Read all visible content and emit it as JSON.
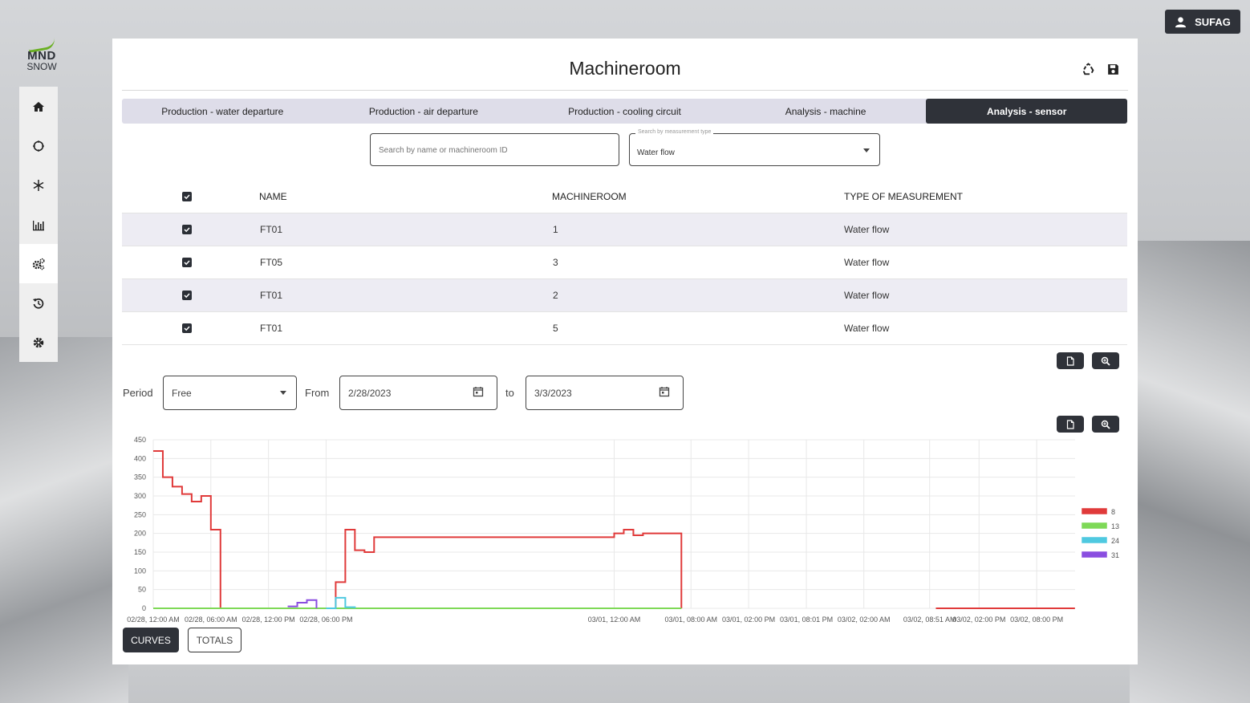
{
  "brand": {
    "logo_top": "MND",
    "logo_bottom": "SNOW"
  },
  "user": {
    "name": "SUFAG"
  },
  "sidebar": {
    "items": [
      {
        "name": "home",
        "active": false
      },
      {
        "name": "circle",
        "active": false
      },
      {
        "name": "snowflake",
        "active": false
      },
      {
        "name": "chart",
        "active": false
      },
      {
        "name": "gears",
        "active": true
      },
      {
        "name": "history",
        "active": false
      },
      {
        "name": "settings",
        "active": false
      }
    ]
  },
  "page": {
    "title": "Machineroom"
  },
  "tabs": [
    {
      "label": "Production - water departure"
    },
    {
      "label": "Production - air departure"
    },
    {
      "label": "Production - cooling circuit"
    },
    {
      "label": "Analysis - machine"
    },
    {
      "label": "Analysis - sensor"
    }
  ],
  "active_tab": 4,
  "search": {
    "placeholder": "Search by name or machineroom ID",
    "value": ""
  },
  "measurement_select": {
    "label": "Search by measurement type",
    "value": "Water flow"
  },
  "table": {
    "headers": {
      "name": "NAME",
      "room": "MACHINEROOM",
      "type": "TYPE OF MEASUREMENT"
    },
    "rows": [
      {
        "name": "FT01",
        "room": "1",
        "type": "Water flow",
        "checked": true
      },
      {
        "name": "FT05",
        "room": "3",
        "type": "Water flow",
        "checked": true
      },
      {
        "name": "FT01",
        "room": "2",
        "type": "Water flow",
        "checked": true
      },
      {
        "name": "FT01",
        "room": "5",
        "type": "Water flow",
        "checked": true
      }
    ]
  },
  "filters": {
    "period_label": "Period",
    "period_value": "Free",
    "from_label": "From",
    "from_value": "2/28/2023",
    "to_label": "to",
    "to_value": "3/3/2023"
  },
  "buttons": {
    "curves": "CURVES",
    "totals": "TOTALS"
  },
  "chart_data": {
    "type": "line",
    "title": "",
    "xlabel": "",
    "ylabel": "",
    "ylim": [
      0,
      450
    ],
    "yticks": [
      0,
      50,
      100,
      150,
      200,
      250,
      300,
      350,
      400,
      450
    ],
    "xlim": [
      "02/28 00:00",
      "03/03 00:00"
    ],
    "xtick_labels": [
      {
        "label": "02/28, 12:00 AM",
        "t": "02/28 00:00"
      },
      {
        "label": "02/28, 06:00 AM",
        "t": "02/28 06:00"
      },
      {
        "label": "02/28, 12:00 PM",
        "t": "02/28 12:00"
      },
      {
        "label": "02/28, 06:00 PM",
        "t": "02/28 18:00"
      },
      {
        "label": "03/01, 12:00 AM",
        "t": "03/01 00:00"
      },
      {
        "label": "03/01, 08:00 AM",
        "t": "03/01 08:00"
      },
      {
        "label": "03/01, 02:00 PM",
        "t": "03/01 14:00"
      },
      {
        "label": "03/01, 08:01 PM",
        "t": "03/01 20:01"
      },
      {
        "label": "03/02, 02:00 AM",
        "t": "03/02 02:00"
      },
      {
        "label": "03/02, 08:51 AM",
        "t": "03/02 08:51"
      },
      {
        "label": "03/02, 02:00 PM",
        "t": "03/02 14:00"
      },
      {
        "label": "03/02, 08:00 PM",
        "t": "03/02 20:00"
      }
    ],
    "grid": true,
    "legend_position": "right",
    "series": [
      {
        "name": "8",
        "color": "#e03a3a",
        "step": true,
        "points": [
          [
            "02/28 00:00",
            420
          ],
          [
            "02/28 01:00",
            350
          ],
          [
            "02/28 02:00",
            325
          ],
          [
            "02/28 03:00",
            305
          ],
          [
            "02/28 04:00",
            285
          ],
          [
            "02/28 05:00",
            300
          ],
          [
            "02/28 06:00",
            210
          ],
          [
            "02/28 07:00",
            0
          ],
          [
            "02/28 19:00",
            70
          ],
          [
            "02/28 20:00",
            210
          ],
          [
            "02/28 21:00",
            155
          ],
          [
            "02/28 22:00",
            150
          ],
          [
            "02/28 23:00",
            190
          ],
          [
            "03/01 00:00",
            200
          ],
          [
            "03/01 01:00",
            210
          ],
          [
            "03/01 02:00",
            195
          ],
          [
            "03/01 03:00",
            200
          ],
          [
            "03/01 04:00",
            200
          ],
          [
            "03/01 07:00",
            0
          ],
          [
            "03/01 14:45",
            null
          ],
          [
            "03/01 15:15",
            0
          ],
          [
            "03/02 09:00",
            null
          ],
          [
            "03/02 09:30",
            0
          ],
          [
            "03/02 23:59",
            0
          ]
        ]
      },
      {
        "name": "13",
        "color": "#7ed957",
        "step": true,
        "points": [
          [
            "02/28 00:00",
            0
          ],
          [
            "03/01 07:00",
            0
          ]
        ]
      },
      {
        "name": "24",
        "color": "#4fc9e0",
        "step": true,
        "points": [
          [
            "02/28 18:00",
            0
          ],
          [
            "02/28 19:00",
            28
          ],
          [
            "02/28 20:00",
            3
          ],
          [
            "02/28 21:00",
            0
          ]
        ]
      },
      {
        "name": "31",
        "color": "#8a4ee0",
        "step": true,
        "points": [
          [
            "02/28 14:00",
            5
          ],
          [
            "02/28 15:00",
            15
          ],
          [
            "02/28 16:00",
            22
          ],
          [
            "02/28 17:00",
            0
          ]
        ]
      }
    ]
  }
}
